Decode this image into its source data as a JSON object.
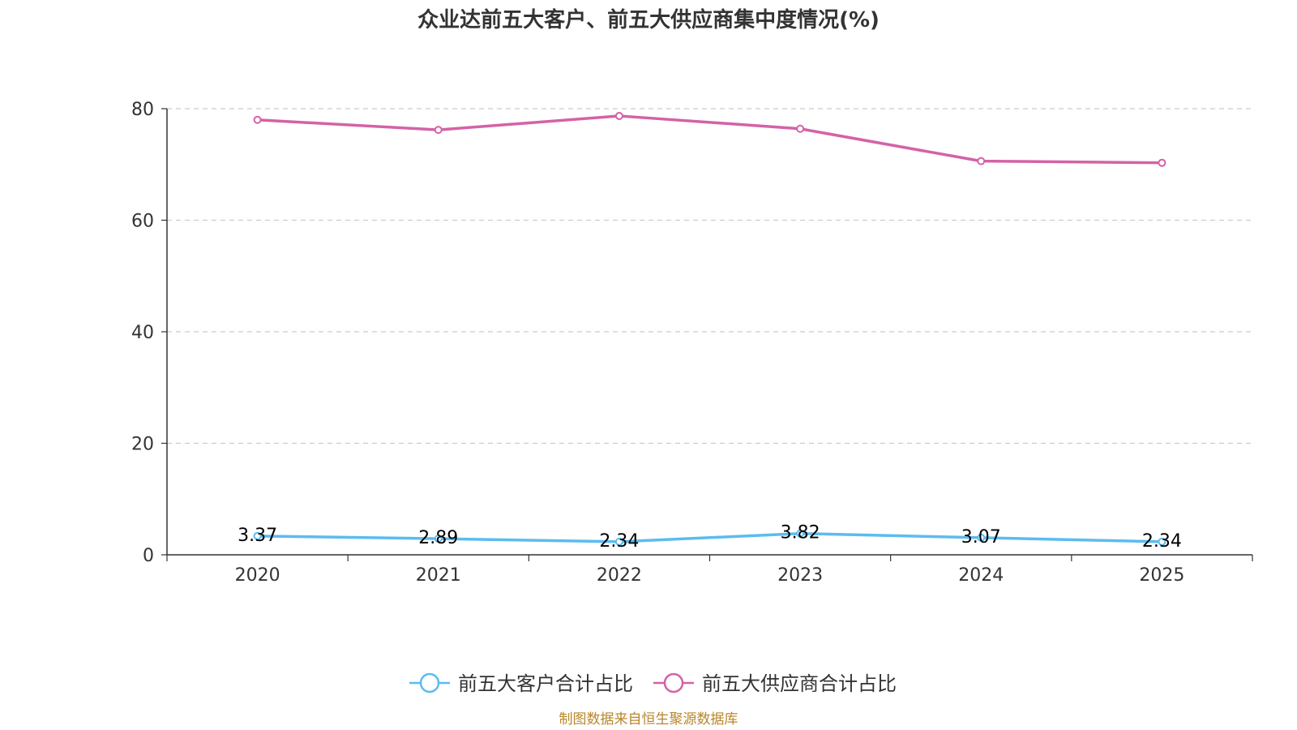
{
  "chart_data": {
    "type": "line",
    "title": "众业达前五大客户、前五大供应商集中度情况(%)",
    "categories": [
      "2020",
      "2021",
      "2022",
      "2023",
      "2024",
      "2025"
    ],
    "ylim": [
      0,
      80
    ],
    "yticks": [
      0,
      20,
      40,
      60,
      80
    ],
    "grid": true,
    "legend_position": "bottom-center",
    "series": [
      {
        "name": "前五大客户合计占比",
        "color": "#5bbcf0",
        "values": [
          3.37,
          2.89,
          2.34,
          3.82,
          3.07,
          2.34
        ],
        "labels": [
          "3.37",
          "2.89",
          "2.34",
          "3.82",
          "3.07",
          "2.34"
        ],
        "show_labels": true
      },
      {
        "name": "前五大供应商合计占比",
        "color": "#d462a6",
        "values": [
          78.0,
          76.2,
          78.7,
          76.4,
          70.6,
          70.3
        ],
        "show_labels": false
      }
    ]
  },
  "source_note": "制图数据来自恒生聚源数据库"
}
